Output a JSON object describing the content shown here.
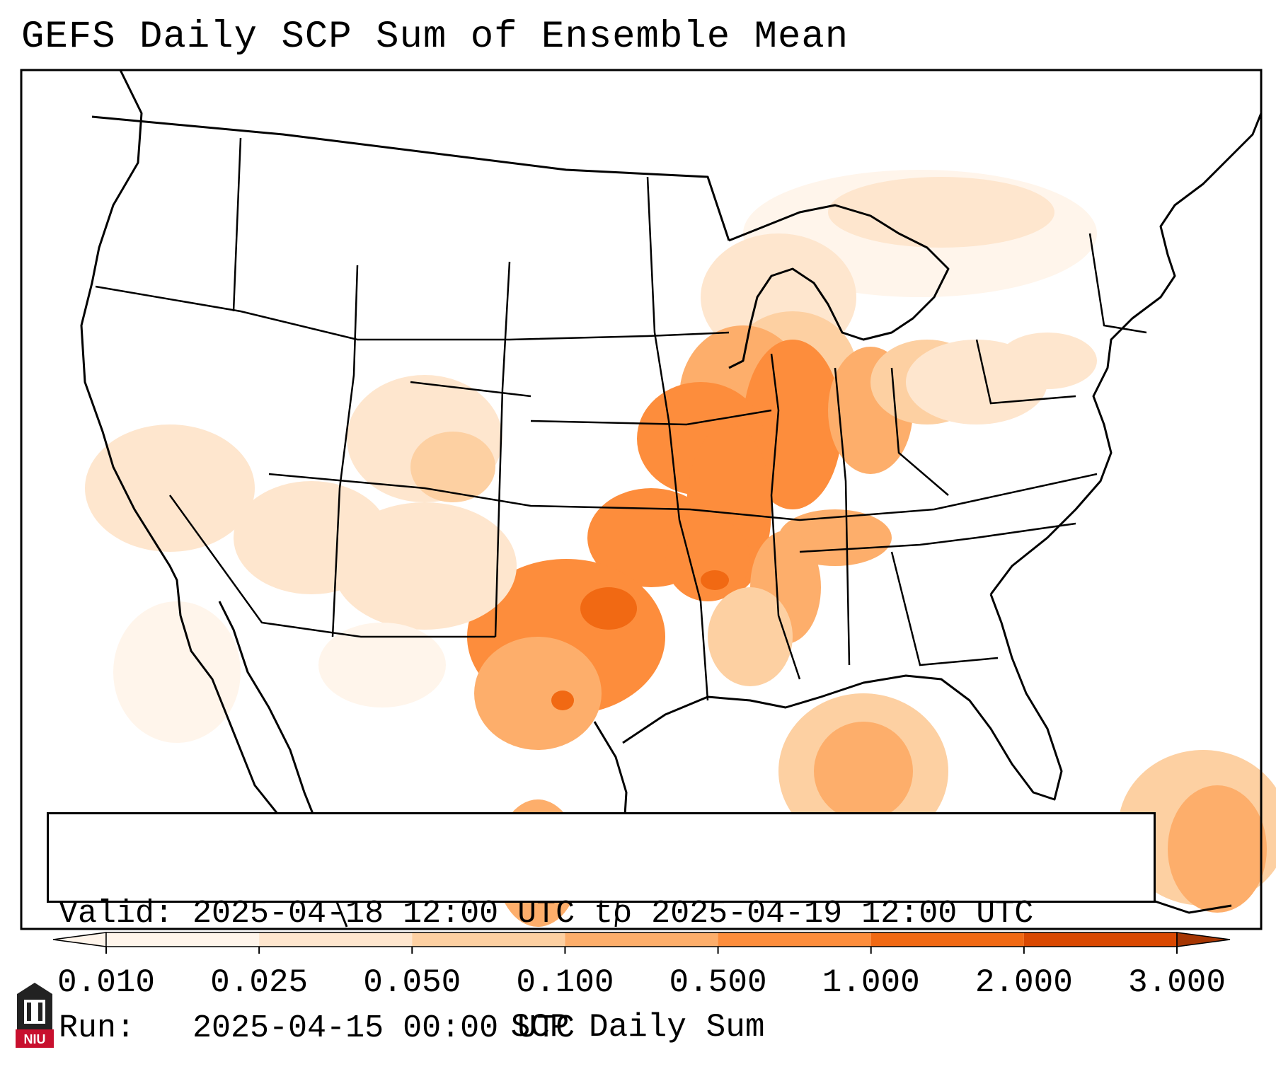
{
  "title": "GEFS Daily SCP Sum of Ensemble Mean",
  "info": {
    "valid_line": "Valid: 2025-04-18 12:00 UTC to 2025-04-19 12:00 UTC",
    "run_line": "Run:   2025-04-15 00:00 UTC"
  },
  "colorbar": {
    "label": "SCP Daily Sum",
    "ticks": [
      "0.010",
      "0.025",
      "0.050",
      "0.100",
      "0.500",
      "1.000",
      "2.000",
      "3.000"
    ],
    "colors": [
      "#fff5eb",
      "#fee6ce",
      "#fdd0a2",
      "#fdae6b",
      "#fd8d3c",
      "#f16913",
      "#d94801",
      "#a63603"
    ]
  },
  "logo": {
    "text": "NIU",
    "color": "#c8102e"
  }
}
